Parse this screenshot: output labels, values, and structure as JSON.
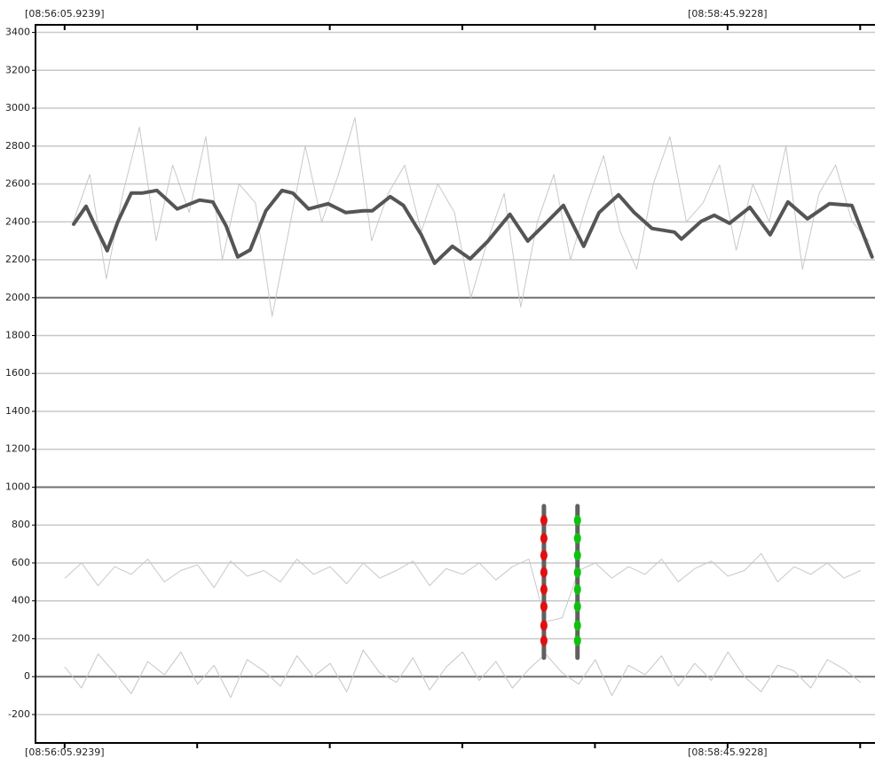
{
  "chart_data": {
    "type": "line",
    "xlim": [
      -1.1,
      201.5
    ],
    "xticks": [
      {
        "value": 5.9239,
        "label": "[08:56:05.9239]"
      },
      37.92,
      69.92,
      101.92,
      133.92,
      {
        "value": 165.9228,
        "label": "[08:58:45.9228]"
      },
      197.92
    ],
    "ylim": [
      -350,
      3440
    ],
    "yticks": [
      -200,
      0,
      200,
      400,
      600,
      800,
      1000,
      1200,
      1400,
      1600,
      1800,
      2000,
      2200,
      2400,
      2600,
      2800,
      3000,
      3200,
      3400
    ],
    "emphasized_yticks": [
      0,
      1000,
      2000
    ],
    "grid": true,
    "series": [
      {
        "color": "#c6cac6",
        "width": 1,
        "x": [
          8,
          12,
          16,
          20,
          24,
          28,
          32,
          36,
          40,
          44,
          48,
          52,
          56,
          60,
          64,
          68,
          72,
          76,
          80,
          84,
          88,
          92,
          96,
          100,
          104,
          108,
          112,
          116,
          120,
          124,
          128,
          132,
          136,
          140,
          144,
          148,
          152,
          156,
          160,
          164,
          168,
          172,
          176,
          180,
          184,
          188,
          192,
          196,
          200
        ],
        "values": [
          2400,
          2650,
          2100,
          2550,
          2900,
          2300,
          2700,
          2450,
          2850,
          2200,
          2600,
          2500,
          1900,
          2350,
          2800,
          2400,
          2650,
          2950,
          2300,
          2550,
          2700,
          2350,
          2600,
          2450,
          2000,
          2300,
          2550,
          1950,
          2400,
          2650,
          2200,
          2500,
          2750,
          2350,
          2150,
          2600,
          2850,
          2400,
          2500,
          2700,
          2250,
          2600,
          2400,
          2800,
          2150,
          2550,
          2700,
          2400,
          2300
        ]
      },
      {
        "color": "#c8c8ce",
        "width": 1,
        "x": [
          6,
          10,
          14,
          18,
          22,
          26,
          30,
          34,
          38,
          42,
          46,
          50,
          54,
          58,
          62,
          66,
          70,
          74,
          78,
          82,
          86,
          90,
          94,
          98,
          102,
          106,
          110,
          114,
          118,
          122,
          126,
          130,
          134,
          138,
          142,
          146,
          150,
          154,
          158,
          162,
          166,
          170,
          174,
          178,
          182,
          186,
          190,
          194,
          198
        ],
        "values": [
          520,
          600,
          480,
          580,
          540,
          620,
          500,
          560,
          590,
          470,
          610,
          530,
          560,
          500,
          620,
          540,
          580,
          490,
          600,
          520,
          560,
          610,
          480,
          570,
          540,
          600,
          510,
          580,
          620,
          290,
          310,
          560,
          600,
          520,
          580,
          540,
          620,
          500,
          570,
          610,
          530,
          560,
          650,
          500,
          580,
          540,
          600,
          520,
          560
        ]
      },
      {
        "color": "#c4c8bf",
        "width": 1,
        "x": [
          6,
          10,
          14,
          18,
          22,
          26,
          30,
          34,
          38,
          42,
          46,
          50,
          54,
          58,
          62,
          66,
          70,
          74,
          78,
          82,
          86,
          90,
          94,
          98,
          102,
          106,
          110,
          114,
          118,
          122,
          126,
          130,
          134,
          138,
          142,
          146,
          150,
          154,
          158,
          162,
          166,
          170,
          174,
          178,
          182,
          186,
          190,
          194,
          198
        ],
        "values": [
          50,
          -60,
          120,
          20,
          -90,
          80,
          10,
          130,
          -40,
          60,
          -110,
          90,
          30,
          -50,
          110,
          0,
          70,
          -80,
          140,
          20,
          -30,
          100,
          -70,
          50,
          130,
          -20,
          80,
          -60,
          40,
          120,
          20,
          -40,
          90,
          -100,
          60,
          10,
          110,
          -50,
          70,
          -20,
          130,
          0,
          -80,
          60,
          30,
          -60,
          90,
          40,
          -30
        ]
      },
      {
        "color": "#555555",
        "width": 4,
        "x": [
          8.1,
          11.1,
          13.8,
          16.2,
          18.8,
          22.0,
          24.6,
          28.2,
          33.1,
          38.5,
          41.7,
          44.9,
          47.7,
          50.7,
          54.5,
          58.4,
          61.0,
          64.8,
          69.5,
          73.8,
          78.1,
          80.2,
          84.5,
          87.7,
          92.0,
          95.2,
          99.5,
          103.8,
          108.1,
          113.4,
          117.7,
          121.4,
          126.3,
          131.2,
          134.9,
          139.6,
          143.4,
          147.7,
          153.1,
          154.8,
          159.5,
          162.7,
          166.4,
          171.3,
          176.2,
          180.5,
          185.2,
          190.5,
          195.9,
          200.8
        ],
        "values": [
          2388,
          2482,
          2356,
          2248,
          2402,
          2552,
          2552,
          2566,
          2468,
          2515,
          2505,
          2379,
          2215,
          2252,
          2459,
          2566,
          2552,
          2468,
          2496,
          2449,
          2459,
          2459,
          2533,
          2487,
          2332,
          2182,
          2271,
          2205,
          2299,
          2440,
          2299,
          2379,
          2487,
          2271,
          2449,
          2543,
          2449,
          2365,
          2346,
          2309,
          2402,
          2435,
          2393,
          2477,
          2332,
          2505,
          2416,
          2496,
          2487,
          2215
        ]
      }
    ],
    "markers": [
      {
        "x": 121.6,
        "color": "#e01010",
        "range": [
          100,
          900
        ],
        "dots": [
          190,
          270,
          370,
          460,
          550,
          640,
          730,
          825
        ]
      },
      {
        "x": 129.7,
        "color": "#10c010",
        "range": [
          100,
          900
        ],
        "dots": [
          190,
          270,
          370,
          460,
          550,
          640,
          730,
          825
        ]
      }
    ]
  }
}
